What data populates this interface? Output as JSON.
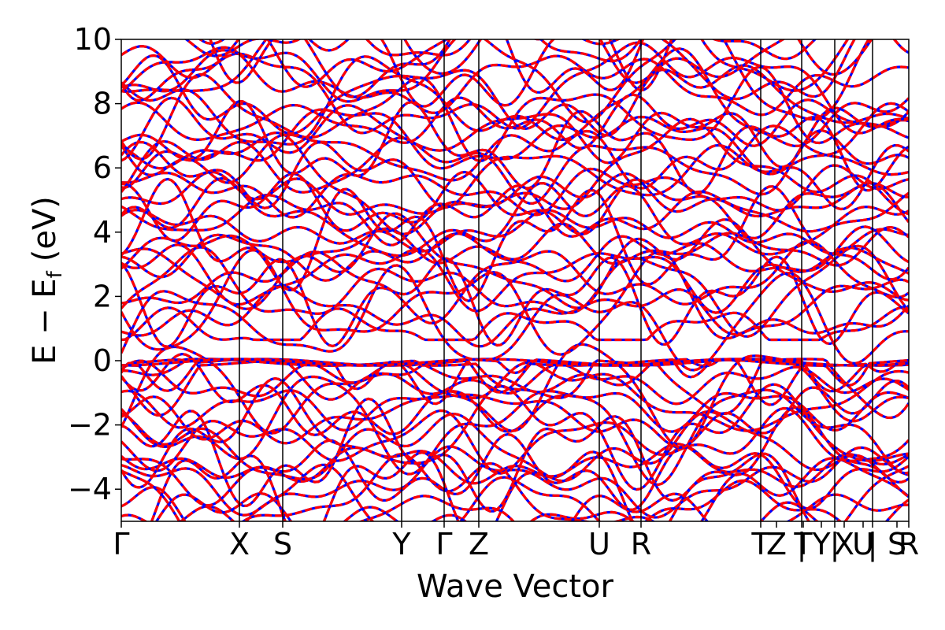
{
  "chart_data": {
    "type": "line",
    "xlabel": "Wave Vector",
    "ylabel_main": "E − E",
    "ylabel_sub": "f",
    "ylabel_unit": "(eV)",
    "ylim": [
      -5,
      10
    ],
    "y_ticks": [
      {
        "value": -4,
        "label": "−4"
      },
      {
        "value": -2,
        "label": "−2"
      },
      {
        "value": 0,
        "label": "0"
      },
      {
        "value": 2,
        "label": "2"
      },
      {
        "value": 4,
        "label": "4"
      },
      {
        "value": 6,
        "label": "6"
      },
      {
        "value": 8,
        "label": "8"
      },
      {
        "value": 10,
        "label": "10"
      }
    ],
    "xlim": [
      0,
      1
    ],
    "high_symmetry_points": [
      {
        "label": "Γ",
        "position": 0.0
      },
      {
        "label": "X",
        "position": 0.15
      },
      {
        "label": "S",
        "position": 0.205
      },
      {
        "label": "Y",
        "position": 0.356
      },
      {
        "label": "Γ",
        "position": 0.41
      },
      {
        "label": "Z",
        "position": 0.454
      },
      {
        "label": "U",
        "position": 0.607
      },
      {
        "label": "R",
        "position": 0.66
      },
      {
        "label": "T",
        "position": 0.812
      },
      {
        "label": "Z",
        "position": 0.832
      },
      {
        "label": "|",
        "position": 0.864
      },
      {
        "label": "T",
        "position": 0.866
      },
      {
        "label": "Y",
        "position": 0.889
      },
      {
        "label": "|",
        "position": 0.906
      },
      {
        "label": "X",
        "position": 0.918
      },
      {
        "label": "U",
        "position": 0.942
      },
      {
        "label": "|",
        "position": 0.954
      },
      {
        "label": "S",
        "position": 0.985
      },
      {
        "label": "R",
        "position": 1.0
      }
    ],
    "vertical_lines": [
      0.15,
      0.205,
      0.356,
      0.41,
      0.454,
      0.607,
      0.66,
      0.812,
      0.864,
      0.906,
      0.954
    ],
    "series": [
      {
        "style": "solid",
        "color": "#0000ff"
      },
      {
        "style": "dashed",
        "color": "#ff0000"
      }
    ],
    "band_count": 60,
    "grid": false,
    "legend": "none"
  }
}
